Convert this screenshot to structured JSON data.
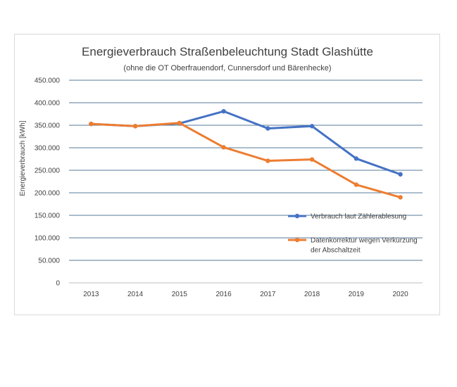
{
  "chart_data": {
    "type": "line",
    "title": "Energieverbrauch Straßenbeleuchtung Stadt Glashütte",
    "subtitle": "(ohne die OT Oberfrauendorf, Cunnersdorf und Bärenhecke)",
    "xlabel": "",
    "ylabel": "Energieverbrauch [kWh]",
    "ylim": [
      0,
      450000
    ],
    "grid": true,
    "legend_position": "right",
    "x": [
      "2013",
      "2014",
      "2015",
      "2016",
      "2017",
      "2018",
      "2019",
      "2020"
    ],
    "y_ticks": [
      {
        "value": 0,
        "label": "0"
      },
      {
        "value": 50000,
        "label": "50.000"
      },
      {
        "value": 100000,
        "label": "100.000"
      },
      {
        "value": 150000,
        "label": "150.000"
      },
      {
        "value": 200000,
        "label": "200.000"
      },
      {
        "value": 250000,
        "label": "250.000"
      },
      {
        "value": 300000,
        "label": "300.000"
      },
      {
        "value": 350000,
        "label": "350.000"
      },
      {
        "value": 400000,
        "label": "400.000"
      },
      {
        "value": 450000,
        "label": "450.000"
      }
    ],
    "series": [
      {
        "name": "Verbrauch laut Zählerablesung",
        "color": "#4472c4",
        "values": [
          353000,
          348000,
          354000,
          381000,
          343000,
          348000,
          276000,
          241000
        ]
      },
      {
        "name": "Datenkorrektur wegen Verkürzung der Abschaltzeit",
        "name_lines": [
          "Datenkorrektur wegen Verkürzung",
          "der Abschaltzeit"
        ],
        "color": "#ed7d31",
        "values": [
          353000,
          348000,
          355000,
          301000,
          271000,
          274000,
          218000,
          190000
        ]
      }
    ]
  }
}
